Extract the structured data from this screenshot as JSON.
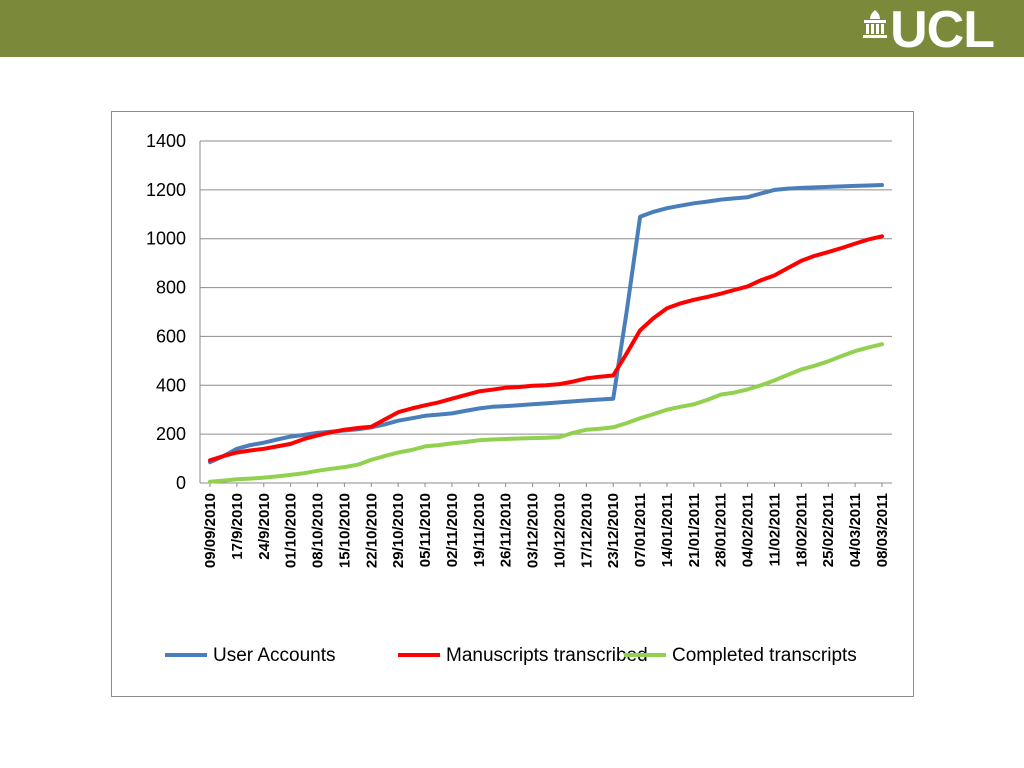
{
  "header": {
    "accent": "#7b8a3a",
    "logo_text": "UCL",
    "logo_icon": "portico-icon"
  },
  "chart_data": {
    "type": "line",
    "title": "",
    "xlabel": "",
    "ylabel": "",
    "ylim": [
      0,
      1400
    ],
    "yticks": [
      0,
      200,
      400,
      600,
      800,
      1000,
      1200,
      1400
    ],
    "grid": true,
    "legend_position": "bottom",
    "x": [
      "09/09/2010",
      "13/09/2010",
      "17/9/2010",
      "20/9/2010",
      "24/9/2010",
      "27/9/2010",
      "01/10/2010",
      "04/10/2010",
      "08/10/2010",
      "11/10/2010",
      "15/10/2010",
      "18/10/2010",
      "22/10/2010",
      "25/10/2010",
      "29/10/2010",
      "01/11/2010",
      "05/11/2010",
      "08/11/2010",
      "02/11/2010",
      "15/11/2010",
      "19/11/2010",
      "22/11/2010",
      "26/11/2010",
      "29/11/2010",
      "03/12/2010",
      "06/12/2010",
      "10/12/2010",
      "13/12/2010",
      "17/12/2010",
      "20/12/2010",
      "23/12/2010",
      "03/01/2011",
      "07/01/2011",
      "10/01/2011",
      "14/01/2011",
      "17/01/2011",
      "21/01/2011",
      "24/01/2011",
      "28/01/2011",
      "31/01/2011",
      "04/02/2011",
      "07/02/2011",
      "11/02/2011",
      "14/02/2011",
      "18/02/2011",
      "21/02/2011",
      "25/02/2011",
      "28/02/2011",
      "04/03/2011",
      "07/03/2011",
      "08/03/2011"
    ],
    "x_tick_labels": [
      "09/09/2010",
      "17/9/2010",
      "24/9/2010",
      "01/10/2010",
      "08/10/2010",
      "15/10/2010",
      "22/10/2010",
      "29/10/2010",
      "05/11/2010",
      "02/11/2010",
      "19/11/2010",
      "26/11/2010",
      "03/12/2010",
      "10/12/2010",
      "17/12/2010",
      "23/12/2010",
      "07/01/2011",
      "14/01/2011",
      "21/01/2011",
      "28/01/2011",
      "04/02/2011",
      "11/02/2011",
      "18/02/2011",
      "25/02/2011",
      "04/03/2011",
      "08/03/2011"
    ],
    "series": [
      {
        "name": "User Accounts",
        "color": "#4a7ebb",
        "values": [
          85,
          110,
          140,
          155,
          165,
          178,
          190,
          197,
          205,
          210,
          215,
          220,
          228,
          240,
          255,
          265,
          275,
          280,
          285,
          295,
          305,
          312,
          315,
          318,
          322,
          326,
          330,
          334,
          338,
          342,
          345,
          700,
          1090,
          1110,
          1125,
          1135,
          1145,
          1152,
          1160,
          1165,
          1170,
          1185,
          1200,
          1205,
          1208,
          1210,
          1212,
          1214,
          1216,
          1218,
          1220
        ]
      },
      {
        "name": "Manuscripts transcribed",
        "color": "#ff0000",
        "values": [
          93,
          110,
          125,
          133,
          140,
          150,
          160,
          180,
          195,
          208,
          218,
          225,
          230,
          260,
          290,
          305,
          318,
          330,
          345,
          360,
          375,
          382,
          390,
          393,
          398,
          400,
          405,
          415,
          428,
          435,
          440,
          530,
          625,
          675,
          715,
          735,
          750,
          762,
          775,
          790,
          805,
          830,
          850,
          880,
          910,
          930,
          945,
          962,
          980,
          997,
          1010
        ]
      },
      {
        "name": "Completed transcripts",
        "color": "#92d050",
        "values": [
          5,
          10,
          15,
          18,
          22,
          27,
          33,
          40,
          50,
          58,
          65,
          75,
          95,
          110,
          125,
          135,
          150,
          155,
          162,
          168,
          175,
          178,
          180,
          182,
          184,
          185,
          188,
          205,
          218,
          222,
          228,
          245,
          265,
          282,
          300,
          312,
          322,
          340,
          362,
          370,
          383,
          400,
          420,
          443,
          465,
          480,
          498,
          520,
          540,
          555,
          568
        ]
      }
    ]
  }
}
